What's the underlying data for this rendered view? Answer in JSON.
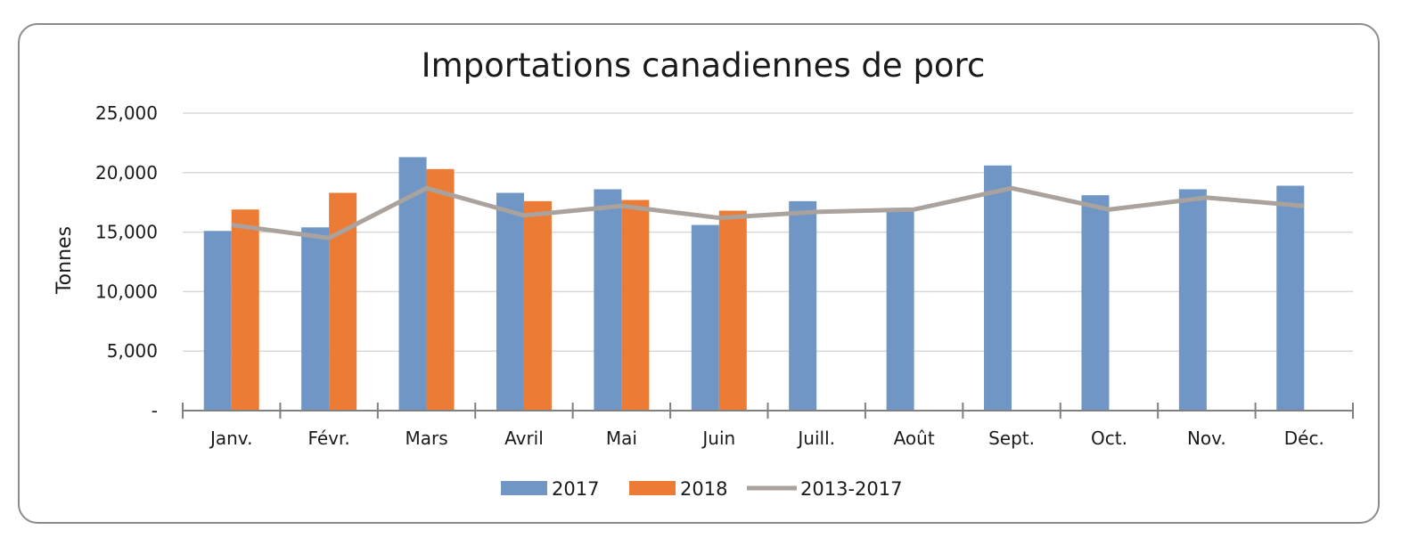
{
  "chart_data": {
    "type": "bar",
    "title": "Importations canadiennes de porc",
    "ylabel": "Tonnes",
    "xlabel": "",
    "ylim": [
      0,
      25000
    ],
    "yticks": [
      0,
      5000,
      10000,
      15000,
      20000,
      25000
    ],
    "ytick_labels": [
      "-",
      "5,000",
      "10,000",
      "15,000",
      "20,000",
      "25,000"
    ],
    "grid": true,
    "legend_position": "bottom",
    "categories": [
      "Janv.",
      "Févr.",
      "Mars",
      "Avril",
      "Mai",
      "Juin",
      "Juill.",
      "Août",
      "Sept.",
      "Oct.",
      "Nov.",
      "Déc."
    ],
    "series": [
      {
        "name": "2017",
        "type": "bar",
        "color": "#7096c6",
        "values": [
          15100,
          15400,
          21300,
          18300,
          18600,
          15600,
          17600,
          16800,
          20600,
          18100,
          18600,
          18900
        ]
      },
      {
        "name": "2018",
        "type": "bar",
        "color": "#ec7b35",
        "values": [
          16900,
          18300,
          20300,
          17600,
          17700,
          16800,
          null,
          null,
          null,
          null,
          null,
          null
        ]
      },
      {
        "name": "2013-2017",
        "type": "line",
        "color": "#aaa29d",
        "values": [
          15600,
          14500,
          18700,
          16400,
          17200,
          16200,
          16700,
          16900,
          18700,
          16900,
          17900,
          17200
        ]
      }
    ]
  }
}
